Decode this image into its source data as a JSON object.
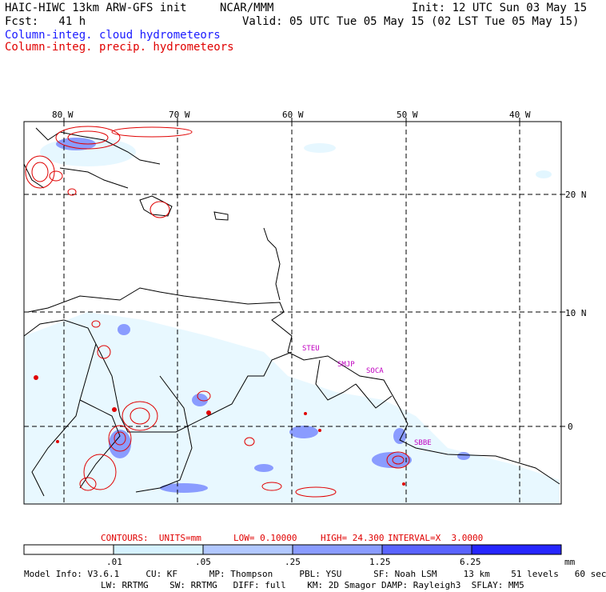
{
  "header": {
    "model_title": "HAIC-HIWC 13km ARW-GFS init",
    "org": "NCAR/MMM",
    "init": "Init: 12 UTC Sun 03 May 15",
    "fcst": "Fcst:   41 h",
    "valid": "Valid: 05 UTC Tue 05 May 15 (02 LST Tue 05 May 15)"
  },
  "legend": {
    "cloud": "Column-integ. cloud hydrometeors",
    "precip": "Column-integ. precip. hydrometeors",
    "cloud_color": "#1a1aff",
    "precip_color": "#e00000"
  },
  "axes": {
    "lon_labels": [
      "80 W",
      "70 W",
      "60 W",
      "50 W",
      "40 W"
    ],
    "lat_labels": [
      "20 N",
      "10 N",
      "0"
    ]
  },
  "stations": [
    "STEU",
    "SMJP",
    "SOCA",
    "SBBE"
  ],
  "contours": {
    "units": "CONTOURS:  UNITS=mm",
    "low": "LOW= 0.10000",
    "high": "HIGH= 24.300",
    "interval": "INTERVAL=X  3.0000"
  },
  "colorbar": {
    "tick_labels": [
      ".01",
      ".05",
      ".25",
      "1.25",
      "6.25"
    ],
    "unit": "mm",
    "colors": [
      "#ffffff",
      "#d6f2ff",
      "#b2c8ff",
      "#8a9cff",
      "#5a64ff",
      "#2626ff"
    ]
  },
  "model_info": {
    "line1": "Model Info: V3.6.1     CU: KF      MP: Thompson     PBL: YSU      SF: Noah LSM     13 km    51 levels   60 sec",
    "line2": "LW: RRTMG    SW: RRTMG   DIFF: full    KM: 2D Smagor DAMP: Rayleigh3  SFLAY: MM5"
  }
}
